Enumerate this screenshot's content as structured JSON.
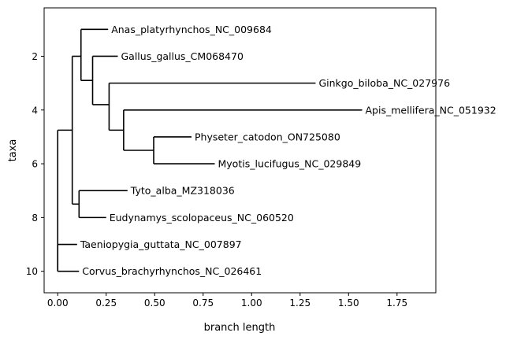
{
  "chart_data": {
    "type": "dendrogram",
    "title": "",
    "xlabel": "branch length",
    "ylabel": "taxa",
    "xlim": [
      -0.07,
      1.95
    ],
    "ylim": [
      10.8,
      0.2
    ],
    "x_ticks": [
      0.0,
      0.25,
      0.5,
      0.75,
      1.0,
      1.25,
      1.5,
      1.75
    ],
    "x_tick_labels": [
      "0.00",
      "0.25",
      "0.50",
      "0.75",
      "1.00",
      "1.25",
      "1.50",
      "1.75"
    ],
    "y_ticks": [
      2,
      4,
      6,
      8,
      10
    ],
    "y_tick_labels": [
      "2",
      "4",
      "6",
      "8",
      "10"
    ],
    "line_color": "#000000",
    "leaves": [
      {
        "name": "Anas_platyrhynchos_NC_009684",
        "row": 1,
        "tip_x": 0.26
      },
      {
        "name": "Gallus_gallus_CM068470",
        "row": 2,
        "tip_x": 0.31
      },
      {
        "name": "Ginkgo_biloba_NC_027976",
        "row": 3,
        "tip_x": 1.33
      },
      {
        "name": "Apis_mellifera_NC_051932",
        "row": 4,
        "tip_x": 1.57
      },
      {
        "name": "Physeter_catodon_ON725080",
        "row": 5,
        "tip_x": 0.69
      },
      {
        "name": "Myotis_lucifugus_NC_029849",
        "row": 6,
        "tip_x": 0.81
      },
      {
        "name": "Tyto_alba_MZ318036",
        "row": 7,
        "tip_x": 0.36
      },
      {
        "name": "Eudynamys_scolopaceus_NC_060520",
        "row": 8,
        "tip_x": 0.25
      },
      {
        "name": "Taeniopygia_guttata_NC_007897",
        "row": 9,
        "tip_x": 0.1
      },
      {
        "name": "Corvus_brachyrhynchos_NC_026461",
        "row": 10,
        "tip_x": 0.11
      }
    ],
    "clades": [
      {
        "x": 0.0,
        "y_min": 4.75,
        "y_max": 10.0
      },
      {
        "x": 0.0,
        "y_min": 9.0,
        "y_max": 10.0
      },
      {
        "x": 0.075,
        "y_min": 2.0,
        "y_max": 7.5
      },
      {
        "x": 0.12,
        "y_min": 1.0,
        "y_max": 2.9
      },
      {
        "x": 0.18,
        "y_min": 2.0,
        "y_max": 3.8
      },
      {
        "x": 0.265,
        "y_min": 3.0,
        "y_max": 4.75
      },
      {
        "x": 0.34,
        "y_min": 4.0,
        "y_max": 5.5
      },
      {
        "x": 0.495,
        "y_min": 5.0,
        "y_max": 6.0
      },
      {
        "x": 0.11,
        "y_min": 7.0,
        "y_max": 8.0
      }
    ],
    "connectors": [
      {
        "x1": 0.0,
        "x2": 0.075,
        "y": 4.75
      },
      {
        "x1": 0.075,
        "x2": 0.12,
        "y": 2.0
      },
      {
        "x1": 0.12,
        "x2": 0.18,
        "y": 2.9
      },
      {
        "x1": 0.18,
        "x2": 0.265,
        "y": 3.8
      },
      {
        "x1": 0.265,
        "x2": 0.34,
        "y": 4.75
      },
      {
        "x1": 0.34,
        "x2": 0.495,
        "y": 5.5
      },
      {
        "x1": 0.075,
        "x2": 0.11,
        "y": 7.5
      }
    ],
    "leaf_branches": [
      {
        "from_x": 0.12,
        "row": 1
      },
      {
        "from_x": 0.18,
        "row": 2
      },
      {
        "from_x": 0.265,
        "row": 3
      },
      {
        "from_x": 0.34,
        "row": 4
      },
      {
        "from_x": 0.495,
        "row": 5
      },
      {
        "from_x": 0.495,
        "row": 6
      },
      {
        "from_x": 0.11,
        "row": 7
      },
      {
        "from_x": 0.11,
        "row": 8
      },
      {
        "from_x": 0.0,
        "row": 9
      },
      {
        "from_x": 0.0,
        "row": 10
      }
    ]
  }
}
